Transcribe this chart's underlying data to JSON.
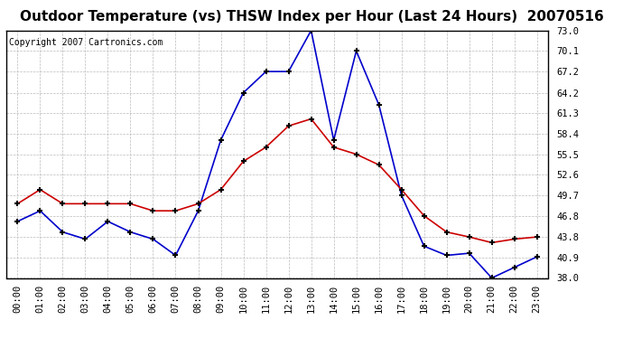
{
  "title": "Outdoor Temperature (vs) THSW Index per Hour (Last 24 Hours)  20070516",
  "copyright": "Copyright 2007 Cartronics.com",
  "hours": [
    "00:00",
    "01:00",
    "02:00",
    "03:00",
    "04:00",
    "05:00",
    "06:00",
    "07:00",
    "08:00",
    "09:00",
    "10:00",
    "11:00",
    "12:00",
    "13:00",
    "14:00",
    "15:00",
    "16:00",
    "17:00",
    "18:00",
    "19:00",
    "20:00",
    "21:00",
    "22:00",
    "23:00"
  ],
  "thsw": [
    46.0,
    47.5,
    44.5,
    43.5,
    46.0,
    44.5,
    43.5,
    41.2,
    47.5,
    57.5,
    64.2,
    67.2,
    67.2,
    73.0,
    57.5,
    70.1,
    62.5,
    49.7,
    42.5,
    41.2,
    41.5,
    38.0,
    39.5,
    41.0
  ],
  "temp": [
    48.5,
    50.5,
    48.5,
    48.5,
    48.5,
    48.5,
    47.5,
    47.5,
    48.5,
    50.5,
    54.5,
    56.5,
    59.5,
    60.5,
    56.5,
    55.5,
    54.0,
    50.5,
    46.8,
    44.5,
    43.8,
    43.0,
    43.5,
    43.8
  ],
  "thsw_color": "#0000cc",
  "temp_color": "#cc0000",
  "bg_color": "#ffffff",
  "plot_bg_color": "#ffffff",
  "grid_color": "#bbbbbb",
  "ylim": [
    38.0,
    73.0
  ],
  "yticks": [
    38.0,
    40.9,
    43.8,
    46.8,
    49.7,
    52.6,
    55.5,
    58.4,
    61.3,
    64.2,
    67.2,
    70.1,
    73.0
  ],
  "title_fontsize": 11,
  "copyright_fontsize": 7,
  "tick_fontsize": 7.5,
  "marker": "+",
  "markersize": 5,
  "markeredgewidth": 1.5,
  "linewidth": 1.2
}
